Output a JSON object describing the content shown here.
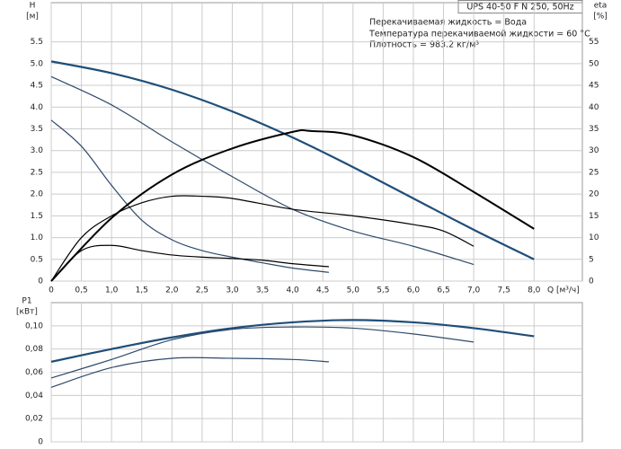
{
  "chart_data": [
    {
      "type": "line",
      "title": "UPS 40-50 F N 250, 50Hz",
      "annotations": [
        "Перекачиваемая жидкость = Вода",
        "Температура перекачиваемой жидкости = 60 °C",
        "Плотность = 983.2 кг/м³"
      ],
      "ylabel": "H",
      "yunit": "[м]",
      "y2label": "eta",
      "y2unit": "[%]",
      "xlabel": "Q [м³/ч]",
      "xlim": [
        0,
        8.8
      ],
      "ylim": [
        0,
        6.4
      ],
      "y2lim": [
        0,
        64
      ],
      "grid": true,
      "xticks": [
        0,
        {
          "value": 0.5,
          "label": "0,5"
        },
        {
          "value": 1,
          "label": "1,0"
        },
        {
          "value": 1.5,
          "label": "1,5"
        },
        {
          "value": 2,
          "label": "2,0"
        },
        {
          "value": 2.5,
          "label": "2,5"
        },
        {
          "value": 3,
          "label": "3,0"
        },
        {
          "value": 3.5,
          "label": "3,5"
        },
        {
          "value": 4,
          "label": "4,0"
        },
        {
          "value": 4.5,
          "label": "4,5"
        },
        {
          "value": 5,
          "label": "5,0"
        },
        {
          "value": 5.5,
          "label": "5,5"
        },
        {
          "value": 6,
          "label": "6,0"
        },
        {
          "value": 6.5,
          "label": "6,5"
        },
        {
          "value": 7,
          "label": "7,0"
        },
        {
          "value": 7.5,
          "label": "7,5"
        },
        {
          "value": 8,
          "label": "8,0"
        }
      ],
      "yticks": [
        0,
        0.5,
        {
          "value": 1,
          "label": "1.0"
        },
        1.5,
        {
          "value": 2,
          "label": "2.0"
        },
        2.5,
        {
          "value": 3,
          "label": "3.0"
        },
        3.5,
        {
          "value": 4,
          "label": "4.0"
        },
        4.5,
        {
          "value": 5,
          "label": "5.0"
        },
        5.5
      ],
      "y2ticks": [
        0,
        5,
        10,
        15,
        20,
        25,
        30,
        35,
        40,
        45,
        50,
        55
      ],
      "series": [
        {
          "color": "#1f4e79",
          "width": 2.2,
          "x": [
            0,
            1,
            2,
            3,
            4,
            5,
            6,
            7,
            8
          ],
          "values": [
            5.05,
            4.78,
            4.4,
            3.9,
            3.3,
            2.62,
            1.9,
            1.18,
            0.5
          ]
        },
        {
          "color": "#2e4a6b",
          "width": 1.2,
          "x": [
            0,
            1,
            2,
            3,
            4,
            5,
            6,
            7
          ],
          "values": [
            4.7,
            4.05,
            3.2,
            2.4,
            1.65,
            1.15,
            0.8,
            0.38
          ]
        },
        {
          "color": "#2e4a6b",
          "width": 1.2,
          "x": [
            0,
            0.5,
            1,
            1.5,
            2,
            2.5,
            3,
            3.5,
            4,
            4.6
          ],
          "values": [
            3.7,
            3.1,
            2.2,
            1.4,
            0.95,
            0.7,
            0.55,
            0.42,
            0.3,
            0.2
          ]
        },
        {
          "color": "#000000",
          "width": 2,
          "axis": "y2",
          "x": [
            0,
            1,
            2,
            3,
            4,
            4.3,
            5,
            6,
            7,
            8
          ],
          "values": [
            0,
            14.5,
            24.5,
            30.5,
            34.3,
            34.5,
            33.5,
            28.5,
            20.5,
            12
          ]
        },
        {
          "color": "#000000",
          "width": 1.2,
          "axis": "y2",
          "x": [
            0,
            0.5,
            1,
            1.5,
            2,
            2.5,
            3,
            4,
            5,
            6,
            6.5,
            7
          ],
          "values": [
            0,
            10,
            15,
            18,
            19.5,
            19.5,
            19,
            16.5,
            15,
            13,
            11.5,
            8
          ]
        },
        {
          "color": "#000000",
          "width": 1.2,
          "axis": "y2",
          "x": [
            0,
            0.5,
            1,
            1.5,
            2,
            2.5,
            3,
            3.5,
            4,
            4.6
          ],
          "values": [
            0,
            7,
            8.2,
            7,
            6,
            5.5,
            5.2,
            4.8,
            4,
            3.3
          ]
        }
      ]
    },
    {
      "type": "line",
      "ylabel": "P1",
      "yunit": "[кВт]",
      "xlim": [
        0,
        8.8
      ],
      "ylim": [
        0,
        0.12
      ],
      "grid": true,
      "xticks": [
        0,
        0.5,
        1,
        1.5,
        2,
        2.5,
        3,
        3.5,
        4,
        4.5,
        5,
        5.5,
        6,
        6.5,
        7,
        7.5,
        8
      ],
      "yticks": [
        0,
        {
          "value": 0.02,
          "label": "0,02"
        },
        {
          "value": 0.04,
          "label": "0,04"
        },
        {
          "value": 0.06,
          "label": "0,06"
        },
        {
          "value": 0.08,
          "label": "0,08"
        },
        {
          "value": 0.1,
          "label": "0,10"
        }
      ],
      "series": [
        {
          "color": "#1f4e79",
          "width": 2.2,
          "x": [
            0,
            1,
            2,
            3,
            4,
            5,
            6,
            7,
            8
          ],
          "values": [
            0.069,
            0.08,
            0.09,
            0.098,
            0.103,
            0.105,
            0.103,
            0.098,
            0.091
          ]
        },
        {
          "color": "#2e4a6b",
          "width": 1.2,
          "x": [
            0,
            1,
            2,
            3,
            4,
            5,
            6,
            7
          ],
          "values": [
            0.055,
            0.071,
            0.088,
            0.097,
            0.099,
            0.098,
            0.093,
            0.086
          ]
        },
        {
          "color": "#2e4a6b",
          "width": 1.2,
          "x": [
            0,
            1,
            2,
            3,
            4,
            4.6
          ],
          "values": [
            0.047,
            0.064,
            0.072,
            0.072,
            0.071,
            0.069
          ]
        }
      ]
    }
  ]
}
